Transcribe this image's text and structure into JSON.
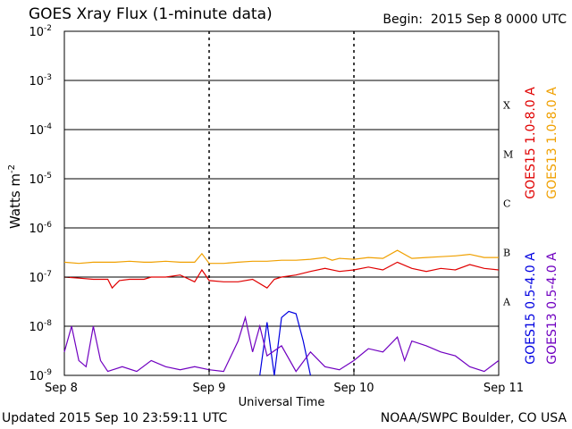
{
  "header": {
    "title": "GOES Xray Flux (1-minute data)",
    "begin_label": "Begin:",
    "begin_value": "2015 Sep 8 0000 UTC"
  },
  "footer": {
    "updated": "Updated 2015 Sep 10 23:59:11 UTC",
    "credit": "NOAA/SWPC Boulder, CO USA"
  },
  "chart_data": {
    "type": "line",
    "title": "GOES Xray Flux (1-minute data)",
    "xlabel": "Universal Time",
    "ylabel": "Watts m",
    "ylabel_sup": "-2",
    "yscale": "log",
    "ylim": [
      1e-09,
      0.01
    ],
    "xlim_days": [
      0,
      3
    ],
    "x_ticks": [
      {
        "day": 0,
        "label": "Sep 8"
      },
      {
        "day": 1,
        "label": "Sep 9"
      },
      {
        "day": 2,
        "label": "Sep 10"
      },
      {
        "day": 3,
        "label": "Sep 11"
      }
    ],
    "y_ticks": [
      {
        "exp": -2,
        "label": "10",
        "sup": "-2"
      },
      {
        "exp": -3,
        "label": "10",
        "sup": "-3"
      },
      {
        "exp": -4,
        "label": "10",
        "sup": "-4"
      },
      {
        "exp": -5,
        "label": "10",
        "sup": "-5"
      },
      {
        "exp": -6,
        "label": "10",
        "sup": "-6"
      },
      {
        "exp": -7,
        "label": "10",
        "sup": "-7"
      },
      {
        "exp": -8,
        "label": "10",
        "sup": "-8"
      },
      {
        "exp": -9,
        "label": "10",
        "sup": "-9"
      }
    ],
    "flare_classes": [
      {
        "label": "X",
        "exp": -3.5
      },
      {
        "label": "M",
        "exp": -4.5
      },
      {
        "label": "C",
        "exp": -5.5
      },
      {
        "label": "B",
        "exp": -6.5
      },
      {
        "label": "A",
        "exp": -7.5
      }
    ],
    "grid": true,
    "legend_position": "right, rotated vertical",
    "series": [
      {
        "name": "GOES15 1.0-8.0 A",
        "color": "#e00000",
        "x": [
          0,
          0.1,
          0.2,
          0.3,
          0.33,
          0.38,
          0.45,
          0.55,
          0.6,
          0.7,
          0.8,
          0.9,
          0.95,
          1.0,
          1.1,
          1.2,
          1.3,
          1.4,
          1.45,
          1.5,
          1.6,
          1.7,
          1.8,
          1.9,
          2.0,
          2.1,
          2.2,
          2.3,
          2.4,
          2.5,
          2.6,
          2.7,
          2.8,
          2.9,
          3.0
        ],
        "y": [
          1e-07,
          9.5e-08,
          9e-08,
          9e-08,
          6e-08,
          8.5e-08,
          9e-08,
          9e-08,
          1e-07,
          1e-07,
          1.1e-07,
          8e-08,
          1.4e-07,
          8.5e-08,
          8e-08,
          8e-08,
          9e-08,
          6e-08,
          9e-08,
          1e-07,
          1.1e-07,
          1.3e-07,
          1.5e-07,
          1.3e-07,
          1.4e-07,
          1.6e-07,
          1.4e-07,
          2e-07,
          1.5e-07,
          1.3e-07,
          1.5e-07,
          1.4e-07,
          1.8e-07,
          1.5e-07,
          1.4e-07
        ]
      },
      {
        "name": "GOES13 1.0-8.0 A",
        "color": "#f0a000",
        "x": [
          0,
          0.1,
          0.2,
          0.3,
          0.35,
          0.45,
          0.55,
          0.6,
          0.7,
          0.8,
          0.9,
          0.95,
          1.0,
          1.1,
          1.2,
          1.3,
          1.4,
          1.5,
          1.6,
          1.7,
          1.8,
          1.85,
          1.9,
          2.0,
          2.1,
          2.2,
          2.3,
          2.4,
          2.5,
          2.6,
          2.7,
          2.8,
          2.9,
          3.0
        ],
        "y": [
          2e-07,
          1.9e-07,
          2e-07,
          2e-07,
          2e-07,
          2.1e-07,
          2e-07,
          2e-07,
          2.1e-07,
          2e-07,
          2e-07,
          3e-07,
          1.9e-07,
          1.9e-07,
          2e-07,
          2.1e-07,
          2.1e-07,
          2.2e-07,
          2.2e-07,
          2.3e-07,
          2.5e-07,
          2.2e-07,
          2.4e-07,
          2.3e-07,
          2.5e-07,
          2.4e-07,
          3.5e-07,
          2.4e-07,
          2.5e-07,
          2.6e-07,
          2.7e-07,
          2.9e-07,
          2.5e-07,
          2.5e-07
        ]
      },
      {
        "name": "GOES15 0.5-4.0 A",
        "color": "#0000e0",
        "x": [
          1.35,
          1.4,
          1.45,
          1.5,
          1.55,
          1.6,
          1.65,
          1.7
        ],
        "y": [
          1e-09,
          1.2e-08,
          1e-09,
          1.5e-08,
          2e-08,
          1.8e-08,
          5e-09,
          1e-09
        ]
      },
      {
        "name": "GOES13 0.5-4.0 A",
        "color": "#7000c0",
        "x": [
          0,
          0.05,
          0.1,
          0.15,
          0.2,
          0.25,
          0.3,
          0.4,
          0.5,
          0.6,
          0.7,
          0.8,
          0.9,
          1.0,
          1.1,
          1.2,
          1.25,
          1.3,
          1.35,
          1.4,
          1.5,
          1.6,
          1.7,
          1.8,
          1.9,
          2.0,
          2.1,
          2.2,
          2.3,
          2.35,
          2.4,
          2.5,
          2.6,
          2.7,
          2.8,
          2.9,
          3.0
        ],
        "y": [
          3e-09,
          1e-08,
          2e-09,
          1.5e-09,
          1e-08,
          2e-09,
          1.2e-09,
          1.5e-09,
          1.2e-09,
          2e-09,
          1.5e-09,
          1.3e-09,
          1.5e-09,
          1.3e-09,
          1.2e-09,
          5e-09,
          1.5e-08,
          3e-09,
          1e-08,
          2.5e-09,
          4e-09,
          1.2e-09,
          3e-09,
          1.5e-09,
          1.3e-09,
          2e-09,
          3.5e-09,
          3e-09,
          6e-09,
          2e-09,
          5e-09,
          4e-09,
          3e-09,
          2.5e-09,
          1.5e-09,
          1.2e-09,
          2e-09
        ]
      }
    ]
  }
}
